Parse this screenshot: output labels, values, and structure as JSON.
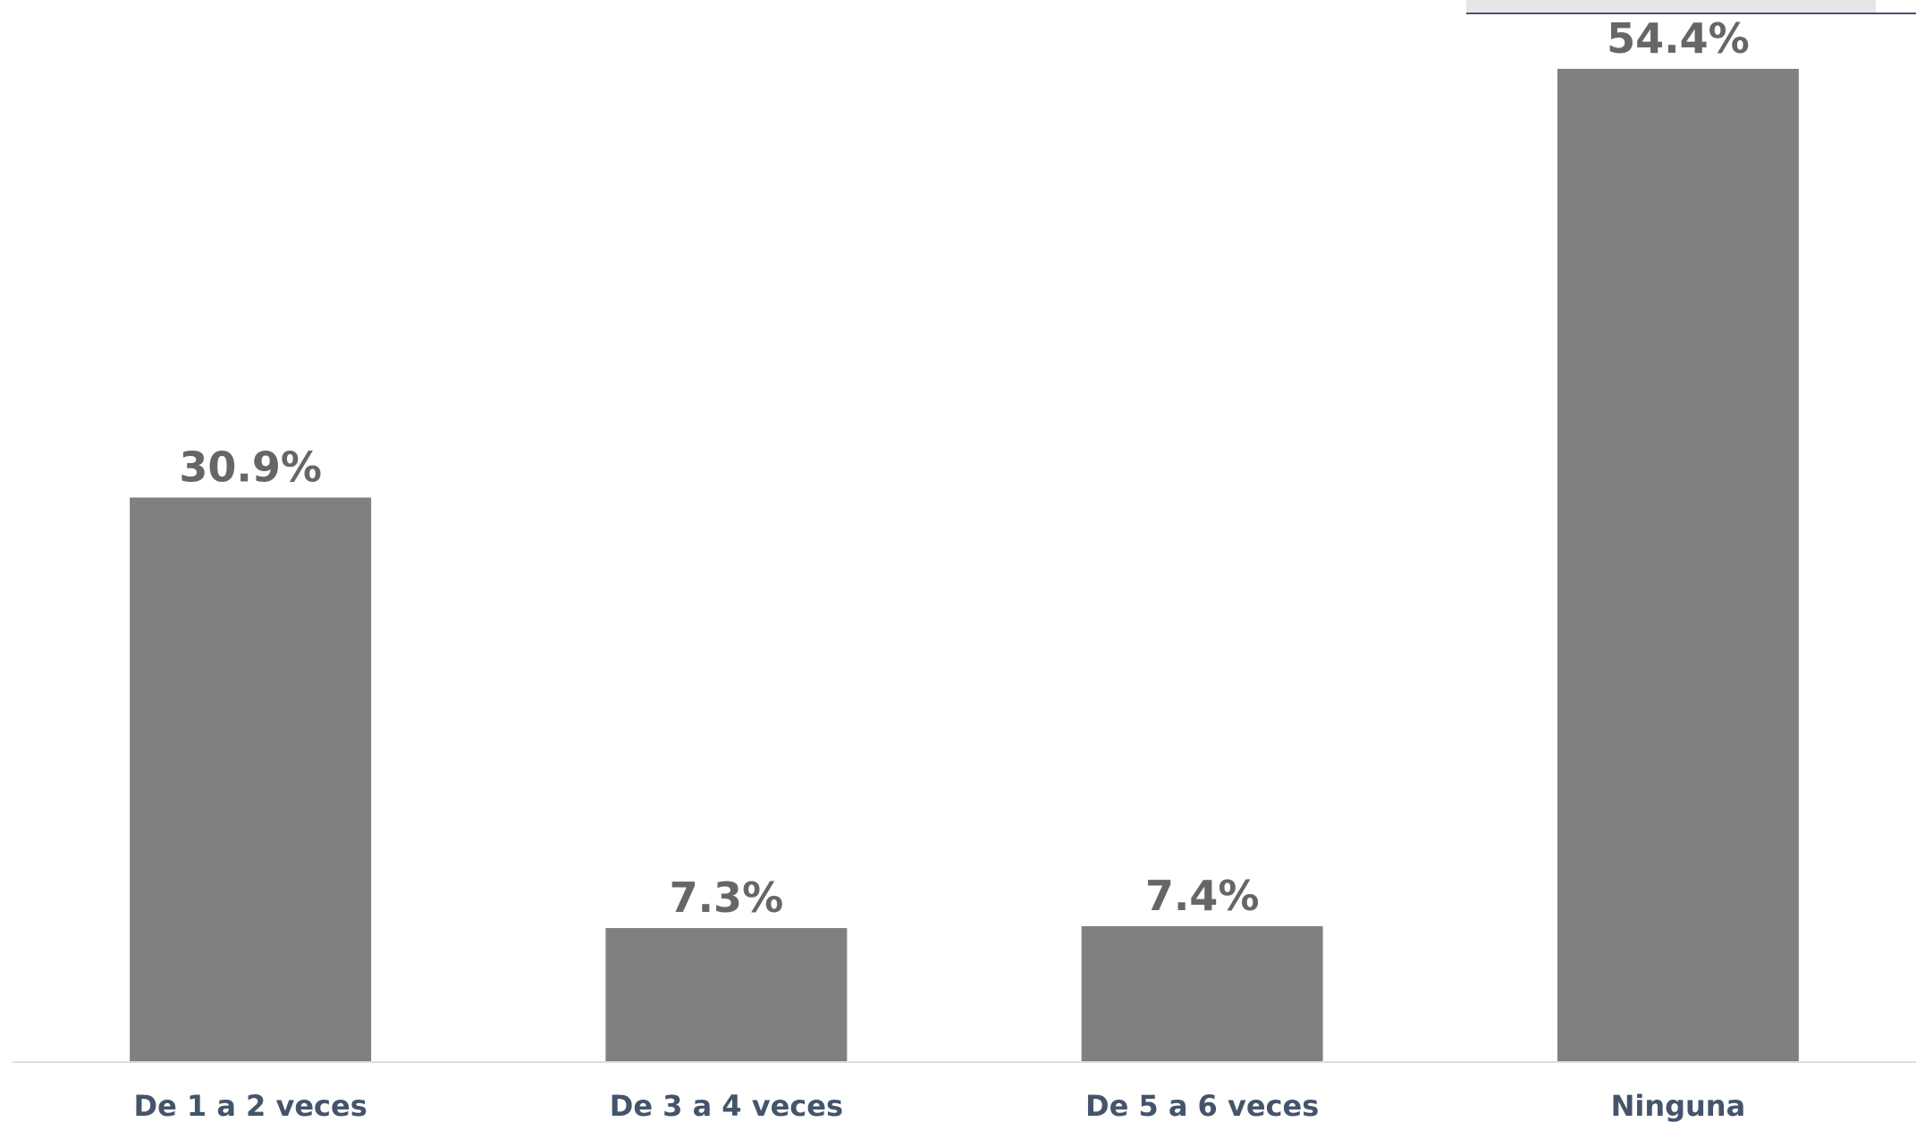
{
  "chart_data": {
    "type": "bar",
    "categories": [
      "De 1 a 2 veces",
      "De 3 a 4 veces",
      "De 5 a 6 veces",
      "Ninguna"
    ],
    "values": [
      30.9,
      7.3,
      7.4,
      54.4
    ],
    "value_labels": [
      "30.9%",
      "7.3%",
      "7.4%",
      "54.4%"
    ],
    "color": "#808080"
  }
}
